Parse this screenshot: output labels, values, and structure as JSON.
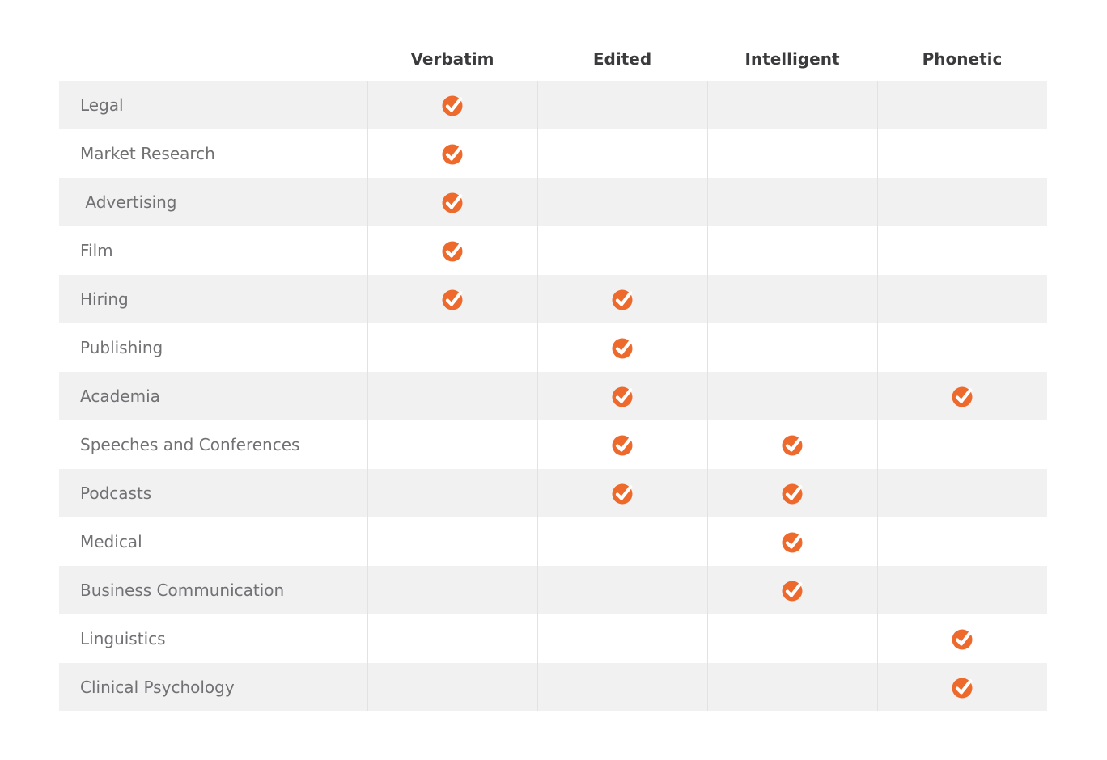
{
  "colors": {
    "check_orange": "#ED6A2C",
    "row_stripe": "#f1f1f2",
    "column_divider": "#e2e2e3",
    "header_text": "#3b3b3d",
    "label_text": "#717174",
    "page_background": "#ffffff"
  },
  "icons": {
    "check": "check-circle-icon"
  },
  "chart_data": {
    "type": "table",
    "title": "",
    "columns": [
      "Verbatim",
      "Edited",
      "Intelligent",
      "Phonetic"
    ],
    "rows": [
      {
        "label": "Legal",
        "checks": [
          "Verbatim"
        ]
      },
      {
        "label": "Market Research",
        "checks": [
          "Verbatim"
        ]
      },
      {
        "label": " Advertising",
        "checks": [
          "Verbatim"
        ]
      },
      {
        "label": "Film",
        "checks": [
          "Verbatim"
        ]
      },
      {
        "label": "Hiring",
        "checks": [
          "Verbatim",
          "Edited"
        ]
      },
      {
        "label": "Publishing",
        "checks": [
          "Edited"
        ]
      },
      {
        "label": "Academia",
        "checks": [
          "Edited",
          "Phonetic"
        ]
      },
      {
        "label": "Speeches and Conferences",
        "checks": [
          "Edited",
          "Intelligent"
        ]
      },
      {
        "label": "Podcasts",
        "checks": [
          "Edited",
          "Intelligent"
        ]
      },
      {
        "label": "Medical",
        "checks": [
          "Intelligent"
        ]
      },
      {
        "label": "Business Communication",
        "checks": [
          "Intelligent"
        ]
      },
      {
        "label": "Linguistics",
        "checks": [
          "Phonetic"
        ]
      },
      {
        "label": "Clinical Psychology",
        "checks": [
          "Phonetic"
        ]
      }
    ]
  }
}
